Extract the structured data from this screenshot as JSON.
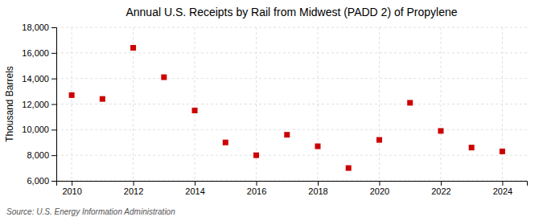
{
  "chart_data": {
    "type": "scatter",
    "title": "Annual U.S. Receipts by Rail from Midwest (PADD 2) of Propylene",
    "ylabel": "Thousand Barrels",
    "source": "Source: U.S. Energy Information Administration",
    "x": [
      2010,
      2011,
      2012,
      2013,
      2014,
      2015,
      2016,
      2017,
      2018,
      2019,
      2020,
      2021,
      2022,
      2023,
      2024
    ],
    "values": [
      12700,
      12400,
      16400,
      14100,
      11500,
      9000,
      8000,
      9600,
      8700,
      7000,
      9200,
      12100,
      9900,
      8600,
      8300
    ],
    "color": "#cc0000",
    "marker": "square",
    "xlim": [
      2009.5,
      2024.8
    ],
    "xticks": [
      2010,
      2012,
      2014,
      2016,
      2018,
      2020,
      2022,
      2024
    ],
    "ylim": [
      6000,
      18000
    ],
    "yticks": [
      {
        "value": 6000,
        "label": "6,000"
      },
      {
        "value": 8000,
        "label": "8,000"
      },
      {
        "value": 10000,
        "label": "10,000"
      },
      {
        "value": 12000,
        "label": "12,000"
      },
      {
        "value": 14000,
        "label": "14,000"
      },
      {
        "value": 16000,
        "label": "16,000"
      },
      {
        "value": 18000,
        "label": "18,000"
      }
    ],
    "grid": true
  }
}
